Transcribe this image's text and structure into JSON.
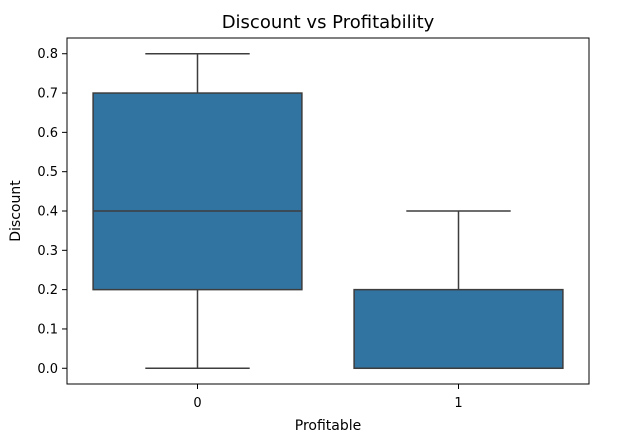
{
  "chart_data": {
    "type": "box",
    "title": "Discount vs Profitability",
    "xlabel": "Profitable",
    "ylabel": "Discount",
    "categories": [
      "0",
      "1"
    ],
    "ylim": [
      -0.04,
      0.84
    ],
    "yticks": [
      "0.0",
      "0.1",
      "0.2",
      "0.3",
      "0.4",
      "0.5",
      "0.6",
      "0.7",
      "0.8"
    ],
    "grid": false,
    "boxes": [
      {
        "category": "0",
        "whisker_low": 0.0,
        "q1": 0.2,
        "median": 0.4,
        "q3": 0.7,
        "whisker_high": 0.8
      },
      {
        "category": "1",
        "whisker_low": 0.0,
        "q1": 0.0,
        "median": 0.0,
        "q3": 0.2,
        "whisker_high": 0.4
      }
    ],
    "colors": {
      "box_fill": "#3274a1",
      "line": "#3d3d3d",
      "axis": "#000000"
    }
  }
}
